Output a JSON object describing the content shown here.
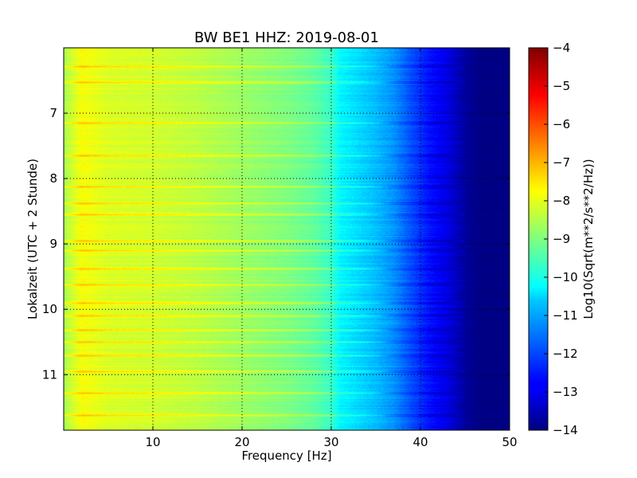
{
  "chart_data": {
    "type": "heatmap",
    "title": "BW BE1 HHZ: 2019-08-01",
    "xlabel": "Frequency [Hz]",
    "ylabel": "Lokalzeit (UTC + 2 Stunde)",
    "xlim": [
      0,
      50
    ],
    "ylim": [
      6.0,
      11.85
    ],
    "y_inverted": true,
    "x_ticks": [
      10,
      20,
      30,
      40,
      50
    ],
    "y_ticks": [
      7,
      8,
      9,
      10,
      11
    ],
    "grid": true,
    "colormap": "jet",
    "colorbar": {
      "label": "Log10(Sqrt(m**2/s**2/Hz))",
      "range": [
        -14,
        -4
      ],
      "ticks": [
        -4,
        -5,
        -6,
        -7,
        -8,
        -9,
        -10,
        -11,
        -12,
        -13,
        -14
      ]
    },
    "spectral_profile": {
      "frequency_hz": [
        0,
        2,
        5,
        10,
        15,
        20,
        25,
        28,
        30,
        31,
        33,
        35,
        37,
        39,
        41,
        43,
        45,
        47,
        50
      ],
      "value": [
        -8.6,
        -7.8,
        -8.1,
        -8.2,
        -8.4,
        -8.7,
        -9.0,
        -9.3,
        -9.7,
        -10.3,
        -10.6,
        -10.9,
        -11.3,
        -12.0,
        -12.6,
        -13.0,
        -13.7,
        -14,
        -14
      ]
    },
    "high_amplitude_times": [
      6.28,
      6.52,
      7.15,
      7.65,
      8.12,
      8.38,
      8.55,
      8.95,
      9.1,
      9.38,
      9.62,
      9.9,
      10.1,
      10.32,
      10.5,
      10.7,
      10.95,
      11.28,
      11.62
    ]
  }
}
